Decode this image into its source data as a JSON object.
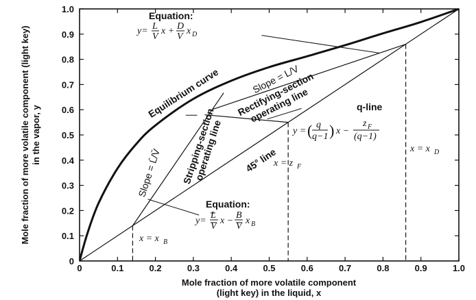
{
  "chart_data": {
    "type": "line",
    "xlabel_line1": "Mole fraction of more volatile component",
    "xlabel_line2": "(light key) in the liquid, x",
    "ylabel_line1": "Mole fraction of more volatile component (light key)",
    "ylabel_line2": "in the vapor, y",
    "xlim": [
      0,
      1
    ],
    "ylim": [
      0,
      1
    ],
    "x_ticks": [
      "0",
      "0.1",
      "0.2",
      "0.3",
      "0.4",
      "0.5",
      "0.6",
      "0.7",
      "0.8",
      "0.9",
      "1.0"
    ],
    "y_ticks": [
      "0",
      "0.1",
      "0.2",
      "0.3",
      "0.4",
      "0.5",
      "0.6",
      "0.7",
      "0.8",
      "0.9",
      "1.0"
    ],
    "x_tick_values": [
      0,
      0.1,
      0.2,
      0.3,
      0.4,
      0.5,
      0.6,
      0.7,
      0.8,
      0.9,
      1.0
    ],
    "y_tick_values": [
      0,
      0.1,
      0.2,
      0.3,
      0.4,
      0.5,
      0.6,
      0.7,
      0.8,
      0.9,
      1.0
    ],
    "equilibrium_curve": {
      "label": "Equilibrium curve",
      "x": [
        0,
        0.02,
        0.05,
        0.1,
        0.15,
        0.2,
        0.3,
        0.4,
        0.5,
        0.6,
        0.7,
        0.8,
        0.9,
        1.0
      ],
      "y": [
        0,
        0.106,
        0.229,
        0.367,
        0.465,
        0.538,
        0.643,
        0.715,
        0.769,
        0.812,
        0.856,
        0.903,
        0.948,
        1.0
      ]
    },
    "diagonal_45": {
      "label": "45° line",
      "x": [
        0,
        1
      ],
      "y": [
        0,
        1
      ]
    },
    "rectifying_line": {
      "x": [
        0.35,
        0.86
      ],
      "y": [
        0.601,
        0.86
      ]
    },
    "stripping_line": {
      "x": [
        0.14,
        0.35
      ],
      "y": [
        0.14,
        0.601
      ]
    },
    "stripping_extension": {
      "x": [
        0.35,
        0.38
      ],
      "y": [
        0.601,
        0.667
      ]
    },
    "q_line": {
      "x": [
        0.55,
        0.33
      ],
      "y": [
        0.55,
        0.58
      ]
    },
    "xB": 0.14,
    "xF": 0.55,
    "xD": 0.86,
    "labels": {
      "equation": "Equation:",
      "slope_rect": "Slope = L/V",
      "rect_line1": "Rectifying-section",
      "rect_line2": "operating line",
      "q_line": "q-line",
      "strip_line1": "Stripping-section",
      "strip_line2": "operating line",
      "slope_strip": "Slope = L̄/V̄",
      "line45": "45° line",
      "x_xB": "x = x",
      "x_xB_sub": "B",
      "x_zF": "x = z",
      "x_zF_sub": "F",
      "x_xD": "x = x",
      "x_xD_sub": "D"
    }
  }
}
